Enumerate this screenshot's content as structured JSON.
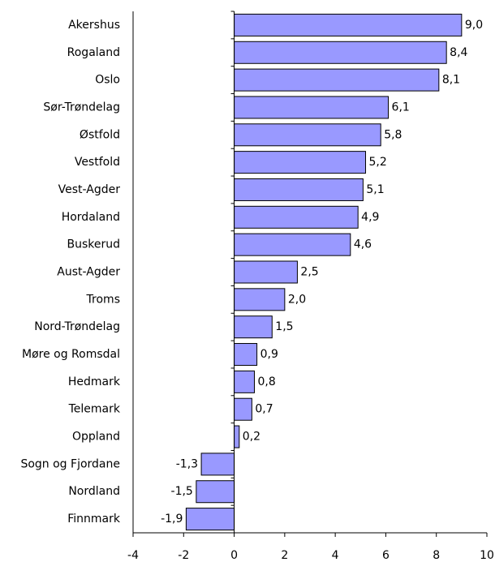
{
  "chart_data": {
    "type": "barh",
    "categories": [
      "Akershus",
      "Rogaland",
      "Oslo",
      "Sør-Trøndelag",
      "Østfold",
      "Vestfold",
      "Vest-Agder",
      "Hordaland",
      "Buskerud",
      "Aust-Agder",
      "Troms",
      "Nord-Trøndelag",
      "Møre og Romsdal",
      "Hedmark",
      "Telemark",
      "Oppland",
      "Sogn og Fjordane",
      "Nordland",
      "Finnmark"
    ],
    "values": [
      9.0,
      8.4,
      8.1,
      6.1,
      5.8,
      5.2,
      5.1,
      4.9,
      4.6,
      2.5,
      2.0,
      1.5,
      0.9,
      0.8,
      0.7,
      0.2,
      -1.3,
      -1.5,
      -1.9
    ],
    "value_labels": [
      "9,0",
      "8,4",
      "8,1",
      "6,1",
      "5,8",
      "5,2",
      "5,1",
      "4,9",
      "4,6",
      "2,5",
      "2,0",
      "1,5",
      "0,9",
      "0,8",
      "0,7",
      "0,2",
      "-1,3",
      "-1,5",
      "-1,9"
    ],
    "color": "#9999ff",
    "xlim": [
      -4,
      10
    ],
    "xticks": [
      -4,
      -2,
      0,
      2,
      4,
      6,
      8,
      10
    ]
  }
}
